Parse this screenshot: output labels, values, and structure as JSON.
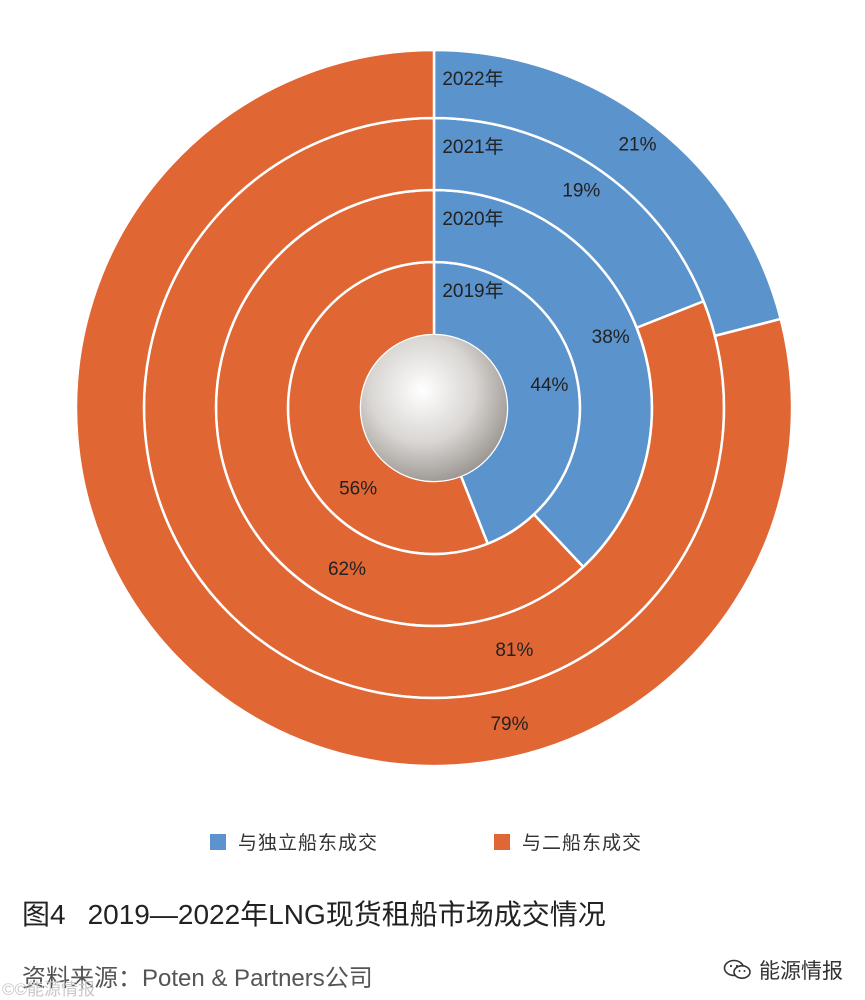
{
  "chart_data": {
    "type": "pie",
    "subtype": "concentric-donut",
    "rings": [
      {
        "year_label": "2019年",
        "values": [
          44,
          56
        ],
        "labels": [
          "44%",
          "56%"
        ]
      },
      {
        "year_label": "2020年",
        "values": [
          38,
          62
        ],
        "labels": [
          "38%",
          "62%"
        ]
      },
      {
        "year_label": "2021年",
        "values": [
          19,
          81
        ],
        "labels": [
          "19%",
          "81%"
        ]
      },
      {
        "year_label": "2022年",
        "values": [
          21,
          79
        ],
        "labels": [
          "21%",
          "79%"
        ]
      }
    ],
    "series": [
      {
        "name": "与独立船东成交",
        "color": "#5b93cc"
      },
      {
        "name": "与二船东成交",
        "color": "#e06634"
      }
    ],
    "legend_position": "bottom"
  },
  "caption": {
    "figure_number": "图4",
    "title": "2019—2022年LNG现货租船市场成交情况"
  },
  "source": "资料来源：Poten & Partners公司",
  "brand": {
    "name": "能源情报",
    "icon": "wechat-icon"
  },
  "watermark": "©©能源情报"
}
